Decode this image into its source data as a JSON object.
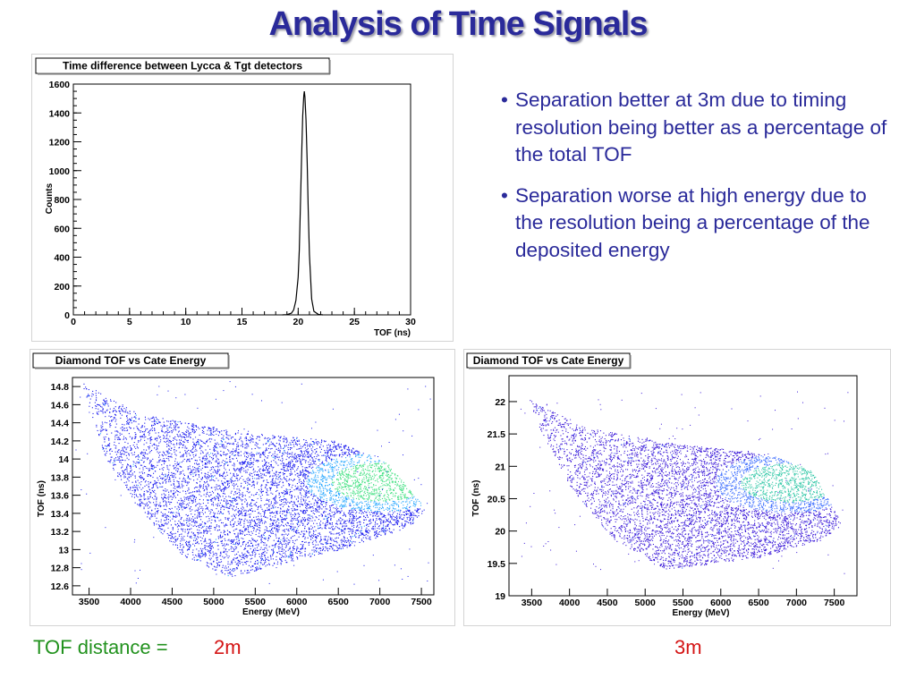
{
  "slide": {
    "title": "Analysis of Time Signals",
    "bullets": [
      "Separation better at 3m due to timing resolution being better as a percentage of the total TOF",
      "Separation worse at high energy due to the resolution being a percentage of the deposited energy"
    ],
    "footer": {
      "label": "TOF distance =",
      "value_left": "2m",
      "value_right": "3m"
    },
    "colors": {
      "title": "#2a2a9a",
      "bullets": "#2a2a9a",
      "footer_label": "#22921e",
      "footer_value": "#d41414"
    }
  },
  "chart_data": [
    {
      "type": "line",
      "title": "Time difference between Lycca & Tgt detectors",
      "xlabel": "TOF (ns)",
      "ylabel": "Counts",
      "xlim": [
        0,
        30
      ],
      "ylim": [
        0,
        1600
      ],
      "xticks": [
        0,
        5,
        10,
        15,
        20,
        25,
        30
      ],
      "yticks": [
        0,
        200,
        400,
        600,
        800,
        1000,
        1200,
        1400,
        1600
      ],
      "grid": false,
      "series": [
        {
          "x": [
            18.6,
            19.0,
            19.4,
            19.6,
            19.8,
            20.0,
            20.1,
            20.2,
            20.3,
            20.4,
            20.5,
            20.55,
            20.6,
            20.7,
            20.8,
            20.9,
            21.0,
            21.2,
            21.4,
            21.8,
            22.2
          ],
          "y": [
            0,
            2,
            12,
            35,
            100,
            260,
            450,
            750,
            1080,
            1380,
            1520,
            1550,
            1510,
            1350,
            1060,
            720,
            420,
            110,
            25,
            3,
            0
          ]
        }
      ]
    },
    {
      "type": "heatmap",
      "title": "Diamond TOF vs Cate Energy",
      "xlabel": "Energy (MeV)",
      "ylabel": "TOF (ns)",
      "xlim": [
        3300,
        7650
      ],
      "ylim": [
        12.5,
        14.9
      ],
      "xticks": [
        3500,
        4000,
        4500,
        5000,
        5500,
        6000,
        6500,
        7000,
        7500
      ],
      "yticks": [
        12.6,
        12.8,
        13,
        13.2,
        13.4,
        13.6,
        13.8,
        14,
        14.2,
        14.4,
        14.6,
        14.8
      ],
      "region": {
        "polygon": [
          [
            3400,
            14.85
          ],
          [
            4100,
            14.5
          ],
          [
            5300,
            14.3
          ],
          [
            6500,
            14.2
          ],
          [
            7100,
            13.95
          ],
          [
            7550,
            13.45
          ],
          [
            7350,
            13.25
          ],
          [
            6500,
            13.0
          ],
          [
            5200,
            12.7
          ],
          [
            4600,
            12.95
          ],
          [
            4100,
            13.45
          ],
          [
            3700,
            14.0
          ]
        ],
        "hotspot": {
          "energy": 7000,
          "tof": 13.75
        },
        "band_count": 24
      },
      "colors": {
        "base": "#1a1aee",
        "dense": "#2aa8ff",
        "hot": "#40e080"
      }
    },
    {
      "type": "heatmap",
      "title": "Diamond TOF vs Cate Energy",
      "xlabel": "Energy (MeV)",
      "ylabel": "TOF (ns)",
      "xlim": [
        3200,
        7800
      ],
      "ylim": [
        19,
        22.4
      ],
      "xticks": [
        3500,
        4000,
        4500,
        5000,
        5500,
        6000,
        6500,
        7000,
        7500
      ],
      "yticks": [
        19,
        19.5,
        20,
        20.5,
        21,
        21.5,
        22
      ],
      "region": {
        "polygon": [
          [
            3450,
            22.05
          ],
          [
            4200,
            21.6
          ],
          [
            5400,
            21.35
          ],
          [
            6600,
            21.2
          ],
          [
            7200,
            20.95
          ],
          [
            7600,
            20.1
          ],
          [
            7300,
            19.85
          ],
          [
            6500,
            19.6
          ],
          [
            5300,
            19.4
          ],
          [
            4600,
            19.85
          ],
          [
            4000,
            20.7
          ],
          [
            3600,
            21.6
          ]
        ],
        "hotspot": {
          "energy": 6900,
          "tof": 20.75
        },
        "band_count": 24
      },
      "colors": {
        "base": "#3a18d8",
        "dense": "#3a6cff",
        "hot": "#34c8a8"
      }
    }
  ]
}
